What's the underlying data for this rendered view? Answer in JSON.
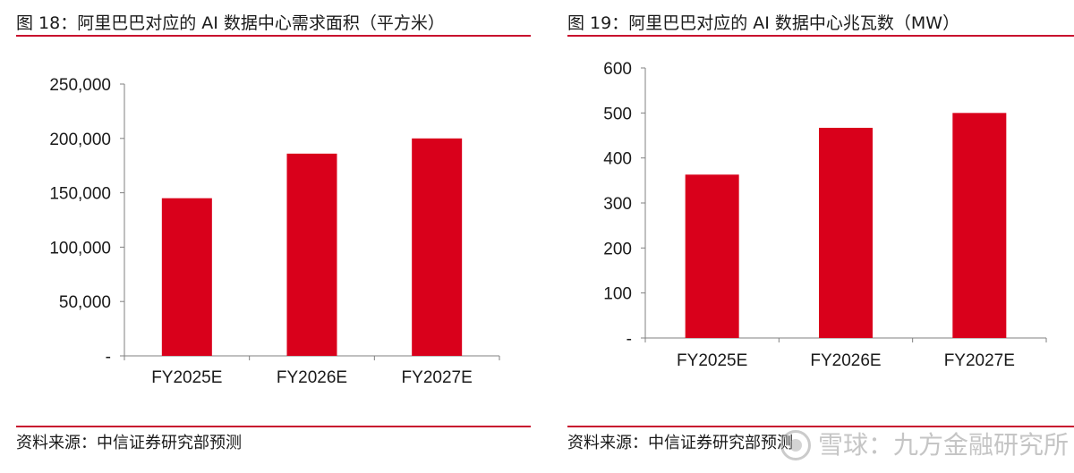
{
  "colors": {
    "accent": "#c8102e",
    "bar": "#d9001b",
    "axis": "#808080"
  },
  "left": {
    "title": "图 18：阿里巴巴对应的 AI 数据中心需求面积（平方米）",
    "source": "资料来源：中信证券研究部预测"
  },
  "right": {
    "title": "图 19：阿里巴巴对应的 AI 数据中心兆瓦数（MW）",
    "source": "资料来源：中信证券研究部预测"
  },
  "watermark": {
    "icon": "jiufang-logo-icon",
    "text": "雪球：九方金融研究所"
  },
  "chart_data": [
    {
      "type": "bar",
      "title": "图 18：阿里巴巴对应的 AI 数据中心需求面积（平方米）",
      "categories": [
        "FY2025E",
        "FY2026E",
        "FY2027E"
      ],
      "values": [
        145000,
        186000,
        200000
      ],
      "ylim": [
        0,
        250000
      ],
      "yticks": [
        0,
        50000,
        100000,
        150000,
        200000,
        250000
      ],
      "ytick_labels": [
        "-",
        "50,000",
        "100,000",
        "150,000",
        "200,000",
        "250,000"
      ],
      "grid": false
    },
    {
      "type": "bar",
      "title": "图 19：阿里巴巴对应的 AI 数据中心兆瓦数（MW）",
      "categories": [
        "FY2025E",
        "FY2026E",
        "FY2027E"
      ],
      "values": [
        363,
        467,
        500
      ],
      "ylim": [
        0,
        600
      ],
      "yticks": [
        0,
        100,
        200,
        300,
        400,
        500,
        600
      ],
      "ytick_labels": [
        "-",
        "100",
        "200",
        "300",
        "400",
        "500",
        "600"
      ],
      "grid": false
    }
  ]
}
